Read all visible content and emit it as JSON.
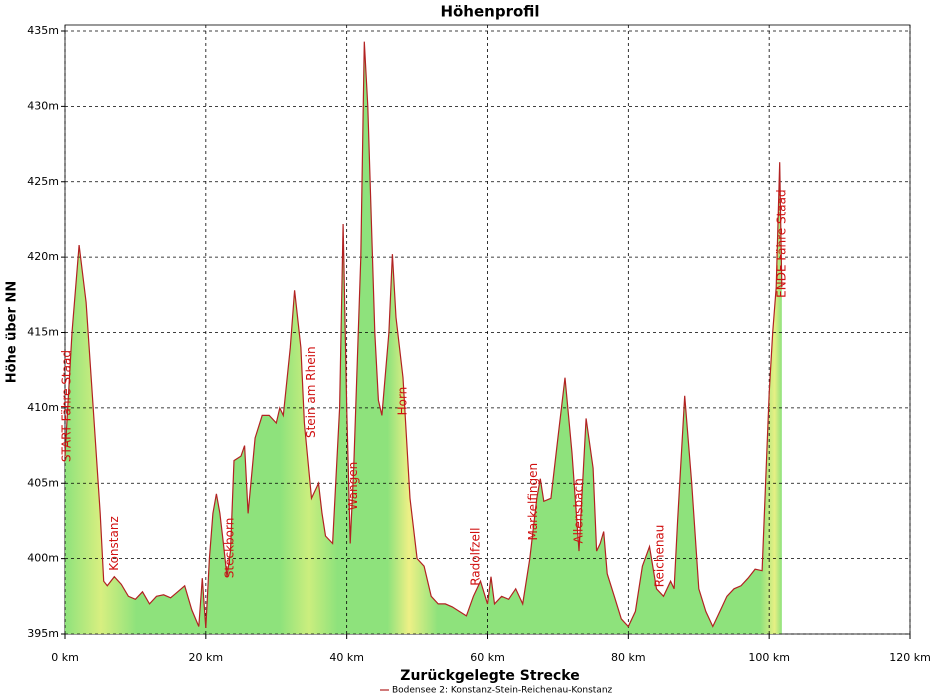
{
  "chart_data": {
    "type": "area",
    "title": "Höhenprofil",
    "xlabel": "Zurückgelegte Strecke",
    "ylabel": "Höhe über NN",
    "x": [
      0,
      1,
      2,
      3,
      4,
      5,
      5.5,
      6,
      7,
      8,
      9,
      10,
      11,
      12,
      13,
      14,
      15,
      16,
      17,
      18,
      19,
      19.5,
      20,
      20.5,
      21,
      21.5,
      22,
      22.5,
      23,
      23.5,
      24,
      25,
      25.5,
      26,
      27,
      28,
      29,
      30,
      30.5,
      31,
      32,
      32.6,
      33.5,
      34,
      35,
      36,
      36.5,
      37,
      38,
      39,
      39.5,
      40,
      40.5,
      41,
      42,
      42.5,
      43,
      44,
      44.5,
      45,
      46,
      46.5,
      47,
      48,
      49,
      50,
      51,
      52,
      53,
      54,
      55,
      56,
      57,
      58,
      59,
      60,
      60.5,
      61,
      62,
      63,
      64,
      65,
      66,
      67,
      67.5,
      68,
      69,
      70,
      71,
      72,
      73,
      74,
      75,
      75.5,
      76,
      76.5,
      77,
      78,
      79,
      80,
      81,
      82,
      83,
      84,
      85,
      86,
      86.5,
      87,
      88,
      89,
      90,
      91,
      92,
      93,
      94,
      95,
      96,
      97,
      98,
      99,
      100,
      100.5,
      101,
      101.5,
      101.8
    ],
    "series": [
      {
        "name": "Bodensee 2: Konstanz-Stein-Reichenau-Konstanz",
        "color": "#b22222",
        "values": [
          406.8,
          415,
          420.8,
          417,
          410,
          403,
          398.5,
          398.2,
          398.8,
          398.3,
          397.5,
          397.3,
          397.8,
          397,
          397.5,
          397.6,
          397.4,
          397.8,
          398.2,
          396.6,
          395.5,
          398.7,
          395.4,
          400,
          403,
          404.3,
          403,
          401,
          398.8,
          400.5,
          406.5,
          406.8,
          407.5,
          403,
          408,
          409.5,
          409.5,
          409,
          410,
          409.5,
          414,
          417.8,
          414,
          409,
          404,
          405,
          403,
          401.5,
          401,
          410,
          422.2,
          410,
          401,
          406,
          420,
          434.3,
          430,
          415,
          410.5,
          409.5,
          415,
          420.2,
          416,
          412,
          404,
          400,
          399.5,
          397.5,
          397,
          397,
          396.8,
          396.5,
          396.2,
          397.5,
          398.5,
          397,
          398.8,
          397,
          397.5,
          397.3,
          398,
          397,
          400,
          404,
          405.3,
          403.8,
          404,
          408,
          412,
          407,
          400.5,
          409.3,
          406,
          400.5,
          401,
          401.8,
          399,
          397.5,
          396,
          395.5,
          396.5,
          399.5,
          400.8,
          398,
          397.5,
          398.5,
          398,
          402.5,
          410.8,
          405,
          398,
          396.5,
          395.5,
          396.5,
          397.5,
          398,
          398.2,
          398.7,
          399.3,
          399.2,
          411,
          415,
          418,
          426.3,
          418
        ]
      }
    ],
    "fill": "#8ee27c",
    "xlim": [
      0,
      120
    ],
    "ylim": [
      395,
      435
    ],
    "xticks": [
      {
        "value": 0,
        "label": "0 km"
      },
      {
        "value": 20,
        "label": "20 km"
      },
      {
        "value": 40,
        "label": "40 km"
      },
      {
        "value": 60,
        "label": "60 km"
      },
      {
        "value": 80,
        "label": "80 km"
      },
      {
        "value": 100,
        "label": "100 km"
      },
      {
        "value": 120,
        "label": "120 km"
      }
    ],
    "yticks": [
      {
        "value": 395,
        "label": "395m"
      },
      {
        "value": 400,
        "label": "400m"
      },
      {
        "value": 405,
        "label": "405m"
      },
      {
        "value": 410,
        "label": "410m"
      },
      {
        "value": 415,
        "label": "415m"
      },
      {
        "value": 420,
        "label": "420m"
      },
      {
        "value": 425,
        "label": "425m"
      },
      {
        "value": 430,
        "label": "430m"
      },
      {
        "value": 435,
        "label": "435m"
      }
    ],
    "grid": true,
    "legend": "bottom",
    "annotations": [
      {
        "text": "START Fähre Staad",
        "x": 0.3,
        "y": 406.4
      },
      {
        "text": "Konstanz",
        "x": 7,
        "y": 399.2
      },
      {
        "text": "Steckborn",
        "x": 23.4,
        "y": 398.7
      },
      {
        "text": "Stein am Rhein",
        "x": 35,
        "y": 408
      },
      {
        "text": "Wangen",
        "x": 41,
        "y": 403.2
      },
      {
        "text": "Horn",
        "x": 48,
        "y": 409.5
      },
      {
        "text": "Radolfzell",
        "x": 58.4,
        "y": 398.2
      },
      {
        "text": "Markelfingen",
        "x": 66.5,
        "y": 401.2
      },
      {
        "text": "Allensbach",
        "x": 73,
        "y": 401
      },
      {
        "text": "Reichenau",
        "x": 84.5,
        "y": 398.1
      },
      {
        "text": "ENDE Fähre Staad",
        "x": 101.8,
        "y": 417.3
      }
    ]
  }
}
